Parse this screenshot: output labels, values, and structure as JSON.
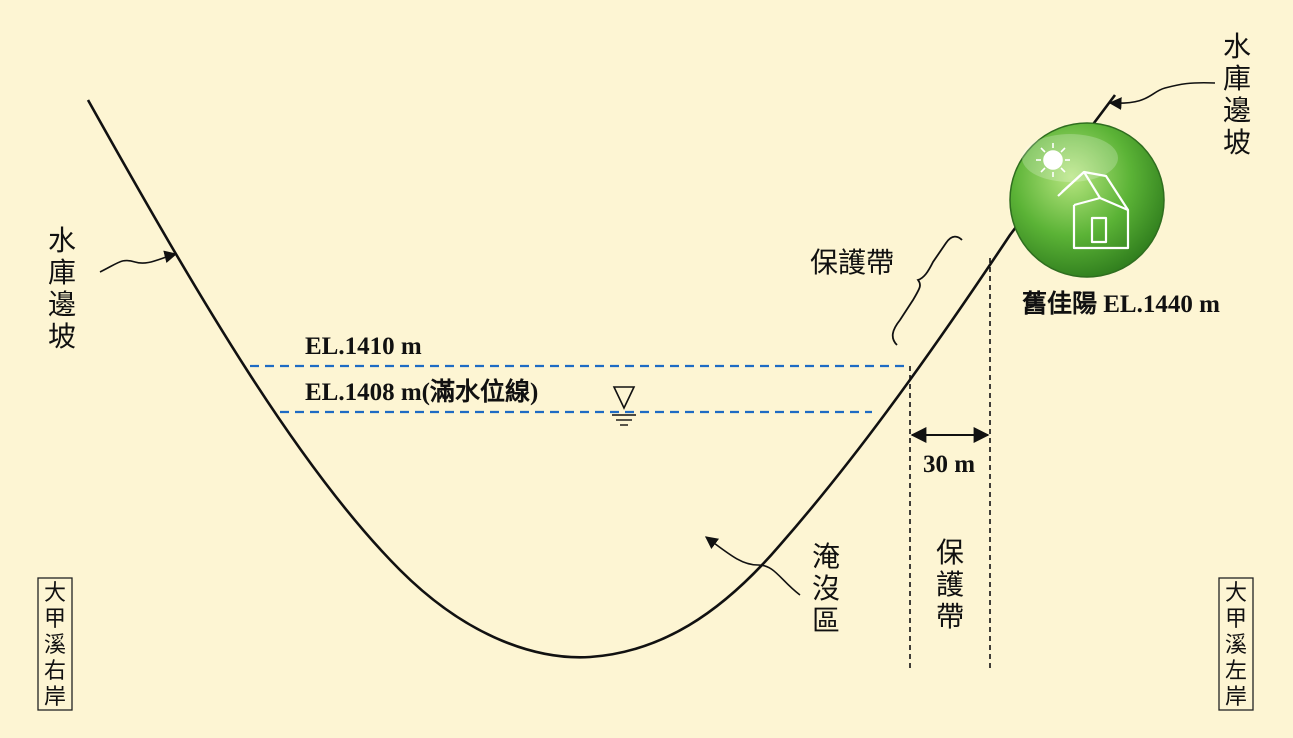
{
  "labels": {
    "slope_left": [
      "水",
      "庫",
      "邊",
      "坡"
    ],
    "slope_right": [
      "水",
      "庫",
      "邊",
      "坡"
    ],
    "protection_zone_top": "保護帶",
    "protection_zone_vertical": [
      "保",
      "護",
      "帶"
    ],
    "water_level_1410": "EL.1410 m",
    "water_level_1408": "EL.1408 m(滿水位線)",
    "width_30m": "30 m",
    "flooded_area": [
      "淹",
      "沒",
      "區"
    ],
    "village": "舊佳陽 EL.1440 m",
    "right_bank": [
      "大",
      "甲",
      "溪",
      "右",
      "岸"
    ],
    "left_bank": [
      "大",
      "甲",
      "溪",
      "左",
      "岸"
    ]
  },
  "icons": {
    "village_icon": "house-with-sun-icon",
    "water_surface": "water-level-triangle-icon"
  },
  "colors": {
    "background": "#fdf5d3",
    "water_line": "#1e6bc4",
    "icon_green": "#5bb336",
    "line": "#111111"
  }
}
